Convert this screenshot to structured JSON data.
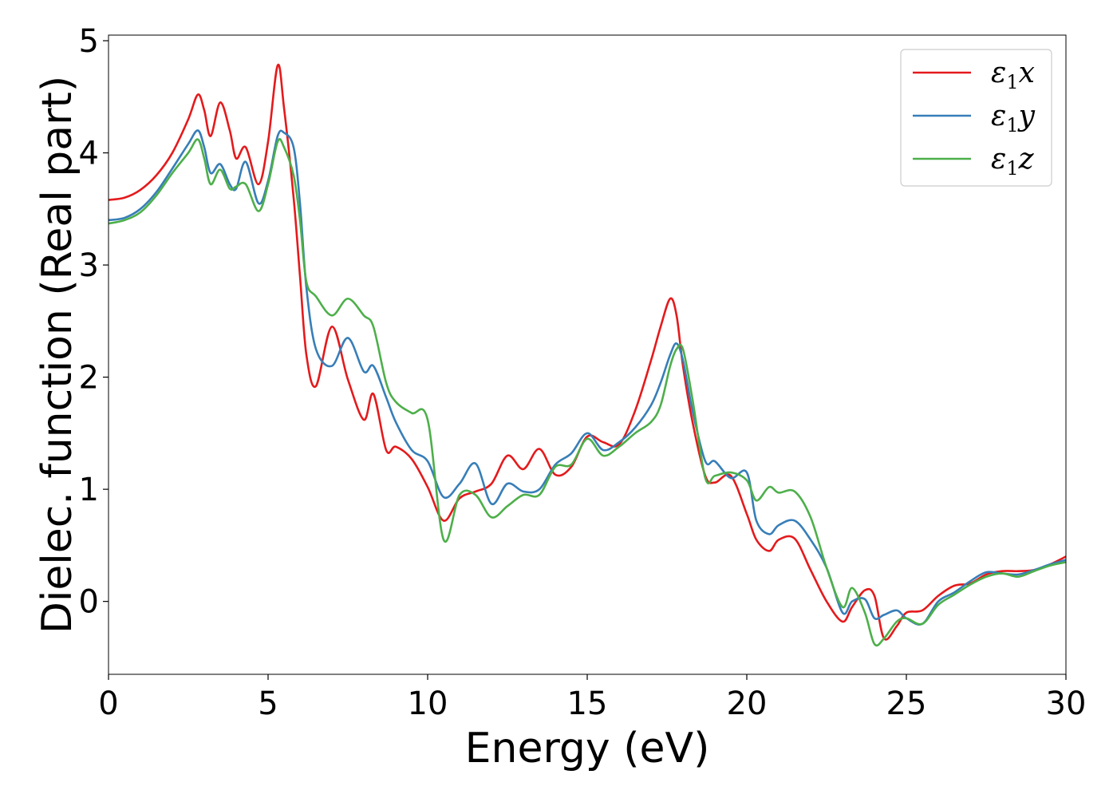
{
  "chart_data": {
    "type": "line",
    "title": "",
    "xlabel": "Energy (eV)",
    "ylabel": "Dielec. function (Real part)",
    "xlim": [
      0,
      30
    ],
    "ylim": [
      -0.65,
      5.05
    ],
    "xticks": [
      0,
      5,
      10,
      15,
      20,
      25,
      30
    ],
    "yticks": [
      0,
      1,
      2,
      3,
      4,
      5
    ],
    "grid": false,
    "legend_position": "top-right",
    "series": [
      {
        "name": "ε1x",
        "label_main": "ε",
        "label_sub": "1",
        "label_tail": "x",
        "color": "#e41a1c",
        "x": [
          0,
          0.5,
          1,
          1.5,
          2,
          2.5,
          2.8,
          3,
          3.2,
          3.5,
          3.8,
          4,
          4.3,
          4.7,
          5,
          5.3,
          5.5,
          5.8,
          6,
          6.2,
          6.5,
          7,
          7.5,
          8,
          8.3,
          8.7,
          9,
          9.5,
          10,
          10.5,
          11,
          11.5,
          12,
          12.5,
          13,
          13.5,
          14,
          14.5,
          15,
          15.5,
          16,
          16.5,
          17,
          17.3,
          17.6,
          17.8,
          18,
          18.3,
          18.7,
          19,
          19.5,
          20,
          20.3,
          20.7,
          21,
          21.5,
          22,
          22.5,
          23,
          23.3,
          23.7,
          24,
          24.3,
          24.7,
          25,
          25.5,
          26,
          26.5,
          27,
          27.5,
          28,
          28.5,
          29,
          29.5,
          30
        ],
        "y": [
          3.58,
          3.6,
          3.67,
          3.8,
          4.0,
          4.3,
          4.52,
          4.38,
          4.15,
          4.45,
          4.2,
          3.95,
          4.05,
          3.72,
          4.1,
          4.78,
          4.4,
          3.6,
          2.9,
          2.2,
          1.92,
          2.45,
          1.98,
          1.62,
          1.85,
          1.35,
          1.38,
          1.27,
          1.02,
          0.72,
          0.92,
          0.98,
          1.05,
          1.3,
          1.18,
          1.36,
          1.13,
          1.2,
          1.47,
          1.42,
          1.4,
          1.7,
          2.15,
          2.45,
          2.7,
          2.55,
          2.1,
          1.6,
          1.12,
          1.06,
          1.12,
          0.78,
          0.55,
          0.45,
          0.55,
          0.56,
          0.28,
          0.0,
          -0.18,
          -0.05,
          0.1,
          0.05,
          -0.33,
          -0.22,
          -0.1,
          -0.08,
          0.05,
          0.14,
          0.16,
          0.24,
          0.27,
          0.27,
          0.28,
          0.33,
          0.4
        ]
      },
      {
        "name": "ε1y",
        "label_main": "ε",
        "label_sub": "1",
        "label_tail": "y",
        "color": "#377eb8",
        "x": [
          0,
          0.5,
          1,
          1.5,
          2,
          2.5,
          2.8,
          3,
          3.2,
          3.5,
          3.8,
          4,
          4.3,
          4.7,
          5,
          5.3,
          5.5,
          5.8,
          6,
          6.2,
          6.5,
          7,
          7.5,
          8,
          8.3,
          8.7,
          9,
          9.5,
          10,
          10.5,
          11,
          11.5,
          12,
          12.5,
          13,
          13.5,
          14,
          14.5,
          15,
          15.5,
          16,
          16.5,
          17,
          17.3,
          17.6,
          17.8,
          18,
          18.3,
          18.7,
          19,
          19.5,
          20,
          20.3,
          20.7,
          21,
          21.5,
          22,
          22.5,
          23,
          23.3,
          23.7,
          24,
          24.3,
          24.7,
          25,
          25.5,
          26,
          26.5,
          27,
          27.5,
          28,
          28.5,
          29,
          29.5,
          30
        ],
        "y": [
          3.4,
          3.42,
          3.5,
          3.65,
          3.86,
          4.08,
          4.2,
          4.05,
          3.82,
          3.9,
          3.72,
          3.68,
          3.92,
          3.55,
          3.75,
          4.15,
          4.18,
          4.05,
          3.55,
          2.8,
          2.25,
          2.1,
          2.35,
          2.05,
          2.1,
          1.82,
          1.6,
          1.35,
          1.25,
          0.93,
          1.05,
          1.23,
          0.87,
          1.05,
          0.98,
          1.0,
          1.22,
          1.32,
          1.5,
          1.35,
          1.42,
          1.55,
          1.75,
          1.95,
          2.2,
          2.3,
          2.15,
          1.7,
          1.25,
          1.25,
          1.1,
          1.15,
          0.72,
          0.6,
          0.68,
          0.72,
          0.55,
          0.3,
          -0.1,
          0.0,
          0.02,
          -0.15,
          -0.12,
          -0.08,
          -0.15,
          -0.2,
          0.0,
          0.08,
          0.18,
          0.26,
          0.25,
          0.24,
          0.28,
          0.33,
          0.37
        ]
      },
      {
        "name": "ε1z",
        "label_main": "ε",
        "label_sub": "1",
        "label_tail": "z",
        "color": "#4daf4a",
        "x": [
          0,
          0.5,
          1,
          1.5,
          2,
          2.5,
          2.8,
          3,
          3.2,
          3.5,
          3.8,
          4,
          4.3,
          4.7,
          5,
          5.3,
          5.5,
          5.8,
          6,
          6.2,
          6.5,
          7,
          7.5,
          8,
          8.3,
          8.7,
          9,
          9.5,
          10,
          10.5,
          11,
          11.5,
          12,
          12.5,
          13,
          13.5,
          14,
          14.5,
          15,
          15.5,
          16,
          16.5,
          17,
          17.3,
          17.6,
          17.8,
          18,
          18.3,
          18.7,
          19,
          19.5,
          20,
          20.3,
          20.7,
          21,
          21.5,
          22,
          22.5,
          23,
          23.3,
          23.7,
          24,
          24.3,
          24.7,
          25,
          25.5,
          26,
          26.5,
          27,
          27.5,
          28,
          28.5,
          29,
          29.5,
          30
        ],
        "y": [
          3.37,
          3.4,
          3.47,
          3.62,
          3.82,
          4.0,
          4.12,
          3.95,
          3.72,
          3.85,
          3.68,
          3.7,
          3.72,
          3.48,
          3.72,
          4.1,
          4.05,
          3.8,
          3.4,
          2.85,
          2.72,
          2.55,
          2.7,
          2.55,
          2.45,
          1.95,
          1.78,
          1.68,
          1.62,
          0.55,
          0.95,
          0.95,
          0.75,
          0.85,
          0.95,
          0.95,
          1.2,
          1.22,
          1.45,
          1.3,
          1.38,
          1.5,
          1.6,
          1.75,
          2.1,
          2.25,
          2.25,
          1.8,
          1.1,
          1.12,
          1.15,
          1.08,
          0.9,
          1.02,
          0.97,
          0.98,
          0.75,
          0.3,
          -0.05,
          0.12,
          -0.1,
          -0.38,
          -0.33,
          -0.18,
          -0.15,
          -0.2,
          -0.03,
          0.06,
          0.15,
          0.22,
          0.25,
          0.22,
          0.27,
          0.32,
          0.35
        ]
      }
    ]
  }
}
